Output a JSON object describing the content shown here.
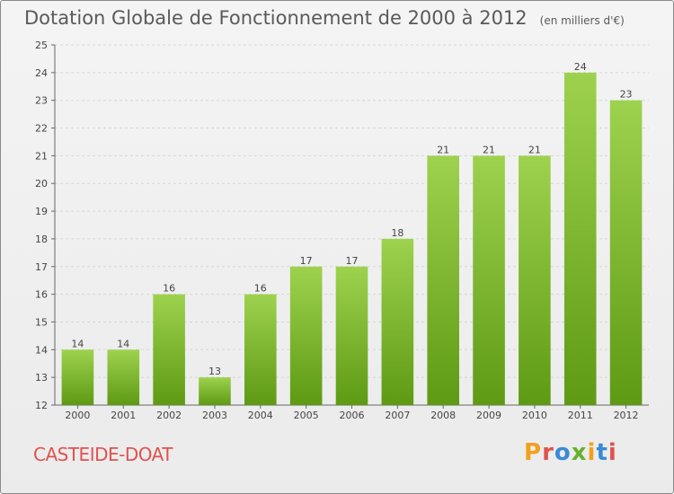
{
  "header": {
    "title": "Dotation Globale de Fonctionnement de 2000 à 2012",
    "subtitle": "(en milliers d'€)"
  },
  "footer": {
    "commune": "CASTEIDE-DOAT",
    "logo_text": "Proxiti",
    "logo_colors": [
      "#f2a01c",
      "#e0524f",
      "#3a8ad6",
      "#64b22e",
      "#f2a01c",
      "#3a8ad6",
      "#e0524f"
    ]
  },
  "colors": {
    "bar_light": "#9ed24e",
    "bar_dark": "#5e9a14",
    "grid": "#d6d6d6",
    "axis": "#666666",
    "text": "#444444"
  },
  "chart_data": {
    "type": "bar",
    "title": "Dotation Globale de Fonctionnement de 2000 à 2012",
    "subtitle": "(en milliers d'€)",
    "categories": [
      "2000",
      "2001",
      "2002",
      "2003",
      "2004",
      "2005",
      "2006",
      "2007",
      "2008",
      "2009",
      "2010",
      "2011",
      "2012"
    ],
    "values": [
      14,
      14,
      16,
      13,
      16,
      17,
      17,
      18,
      21,
      21,
      21,
      24,
      23
    ],
    "ylim": [
      12,
      25
    ],
    "yticks": [
      12,
      13,
      14,
      15,
      16,
      17,
      18,
      19,
      20,
      21,
      22,
      23,
      24,
      25
    ],
    "grid": true,
    "data_labels": true
  }
}
